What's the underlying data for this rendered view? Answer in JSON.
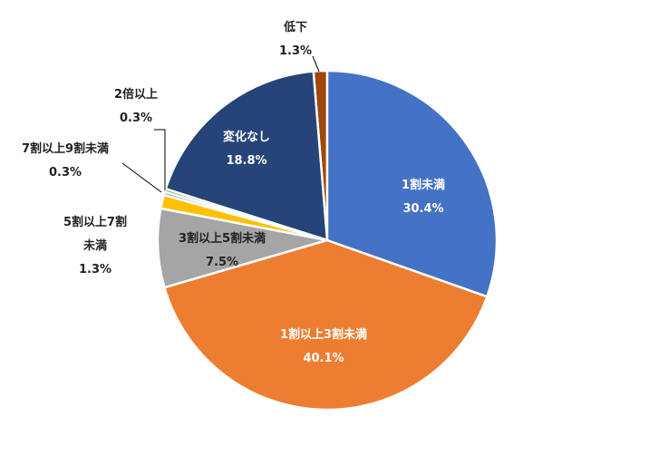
{
  "chart_data": {
    "type": "pie",
    "categories": [
      "1割未満",
      "1割以上3割未満",
      "3割以上5割未満",
      "5割以上7割未満",
      "7割以上9割未満",
      "2倍以上",
      "変化なし",
      "低下"
    ],
    "values": [
      30.4,
      40.1,
      7.5,
      1.3,
      0.3,
      0.3,
      18.8,
      1.3
    ],
    "value_labels": [
      "30.4%",
      "40.1%",
      "7.5%",
      "1.3%",
      "0.3%",
      "0.3%",
      "18.8%",
      "1.3%"
    ],
    "colors": [
      "#4472c4",
      "#ed7d31",
      "#a5a5a5",
      "#ffc000",
      "#5b9bd5",
      "#70ad47",
      "#264478",
      "#9e480e"
    ]
  }
}
